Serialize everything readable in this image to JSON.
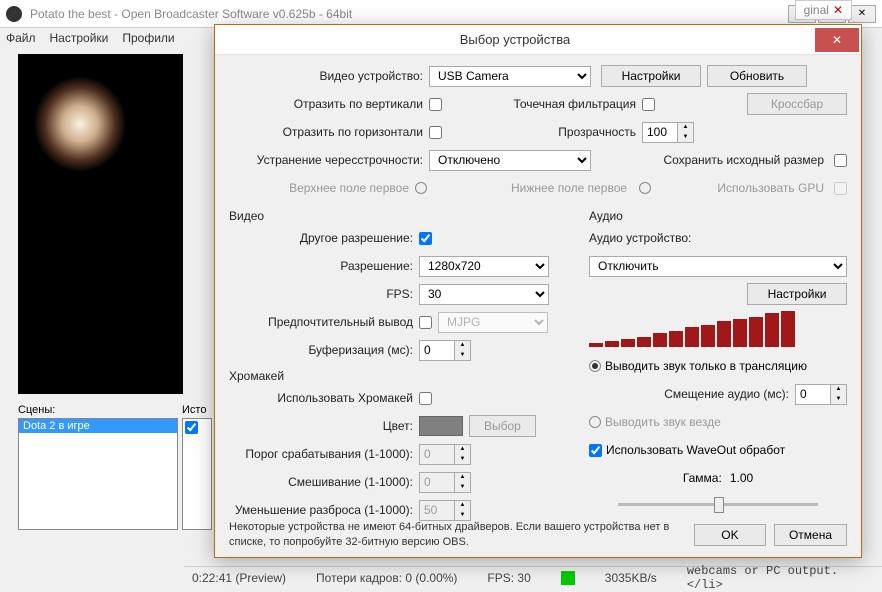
{
  "main": {
    "title": "Potato the best - Open Broadcaster Software v0.625b - 64bit",
    "menu": [
      "Файл",
      "Настройки",
      "Профили"
    ],
    "scenes_label": "Сцены:",
    "sources_label": "Исто",
    "scene_item": "Dota 2 в игре",
    "status": {
      "time": "0:22:41 (Preview)",
      "drops": "Потери кадров: 0 (0.00%)",
      "fps": "FPS: 30",
      "bitrate": "3035KB/s"
    },
    "bg_tab": "ginal",
    "bg_text": "webcams or PC output.</li>"
  },
  "dlg": {
    "title": "Выбор устройства",
    "close": "✕",
    "video_device_label": "Видео устройство:",
    "video_device_value": "USB Camera",
    "settings_btn": "Настройки",
    "refresh_btn": "Обновить",
    "flip_v": "Отразить по вертикали",
    "flip_h": "Отразить по горизонтали",
    "point_filter": "Точечная фильтрация",
    "opacity_label": "Прозрачность",
    "opacity_value": "100",
    "crossbar": "Кроссбар",
    "deint_label": "Устранение чересстрочности:",
    "deint_value": "Отключено",
    "preserve_size": "Сохранить исходный размер",
    "top_field": "Верхнее поле первое",
    "bottom_field": "Нижнее поле первое",
    "use_gpu": "Использовать GPU",
    "video_group": "Видео",
    "other_res": "Другое разрешение:",
    "res_label": "Разрешение:",
    "res_value": "1280x720",
    "fps_label": "FPS:",
    "fps_value": "30",
    "pref_out": "Предпочтительный вывод",
    "pref_out_value": "MJPG",
    "buffer_label": "Буферизация (мс):",
    "buffer_value": "0",
    "chroma_group": "Хромакей",
    "use_chroma": "Использовать Хромакей",
    "color_label": "Цвет:",
    "select_btn": "Выбор",
    "threshold_label": "Порог срабатывания (1-1000):",
    "threshold_value": "0",
    "blend_label": "Смешивание (1-1000):",
    "blend_value": "0",
    "spill_label": "Уменьшение разброса (1-1000):",
    "spill_value": "50",
    "audio_group": "Аудио",
    "audio_device_label": "Аудио устройство:",
    "audio_device_value": "Отключить",
    "audio_settings": "Настройки",
    "audio_stream_only": "Выводить звук только в трансляцию",
    "audio_offset_label": "Смещение аудио (мс):",
    "audio_offset_value": "0",
    "audio_everywhere": "Выводить звук везде",
    "use_waveout": "Использовать WaveOut обработ",
    "gamma_label": "Гамма:",
    "gamma_value": "1.00",
    "note": "Некоторые устройства не имеют 64-битных драйверов. Если вашего устройства нет в списке, то попробуйте 32-битную версию OBS.",
    "ok": "OK",
    "cancel": "Отмена",
    "meter_heights": [
      4,
      6,
      8,
      10,
      14,
      16,
      20,
      22,
      26,
      28,
      30,
      34,
      36
    ]
  }
}
